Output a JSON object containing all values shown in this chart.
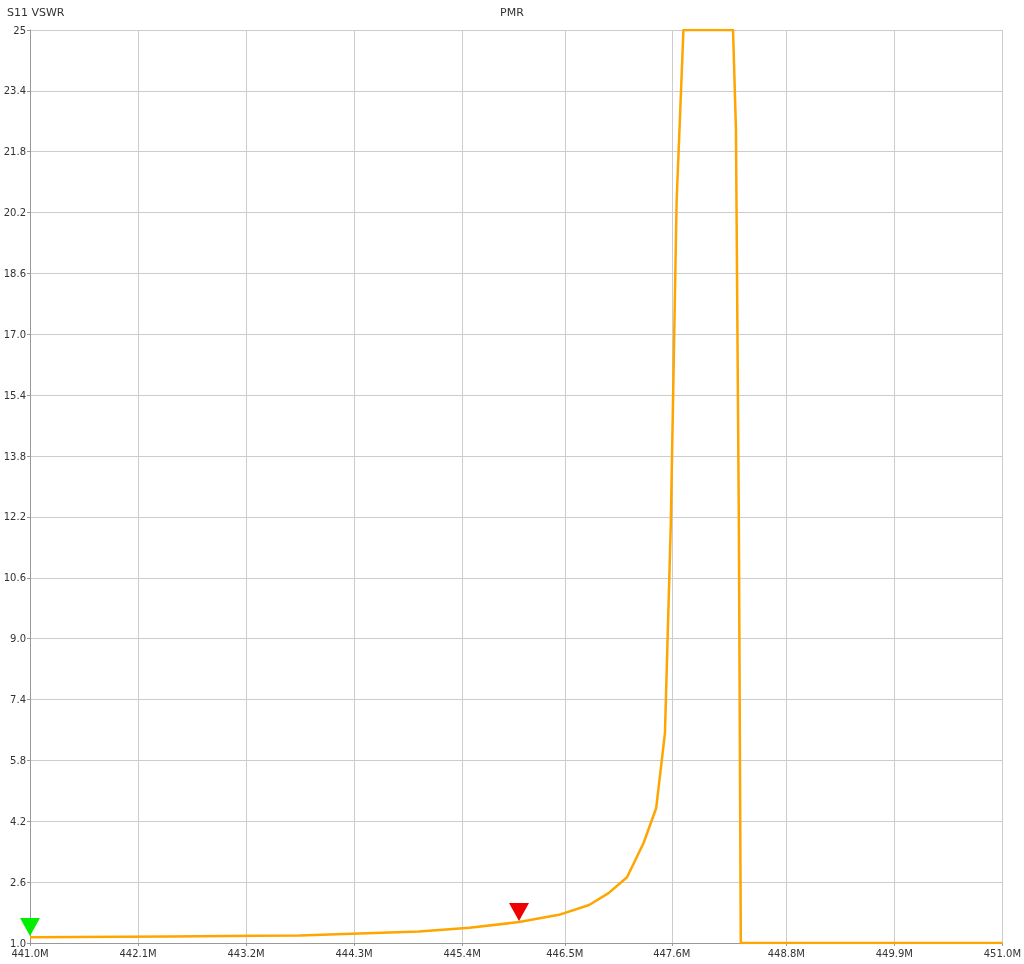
{
  "chart_data": {
    "type": "line",
    "title": "PMR",
    "ylabel": "S11 VSWR",
    "x": [
      441.0,
      442.44,
      443.77,
      444.39,
      445.0,
      445.52,
      446.03,
      446.44,
      446.75,
      446.95,
      447.14,
      447.31,
      447.44,
      447.53,
      447.59,
      447.65,
      447.72,
      448.23,
      448.26,
      448.29,
      448.31,
      451.0
    ],
    "series": [
      {
        "color": "#ffa500",
        "values": [
          1.15,
          1.17,
          1.2,
          1.25,
          1.3,
          1.4,
          1.55,
          1.74,
          2.0,
          2.31,
          2.73,
          3.63,
          4.55,
          6.52,
          12,
          20.5,
          25,
          25,
          22.4,
          12,
          1.0,
          1.0
        ]
      }
    ],
    "xlim": [
      441.0,
      451.0
    ],
    "xticks": [
      {
        "value": 441.0,
        "label": "441.0M"
      },
      {
        "value": 442.111,
        "label": "442.1M"
      },
      {
        "value": 443.222,
        "label": "443.2M"
      },
      {
        "value": 444.333,
        "label": "444.3M"
      },
      {
        "value": 445.444,
        "label": "445.4M"
      },
      {
        "value": 446.5,
        "label": "446.5M"
      },
      {
        "value": 447.6,
        "label": "447.6M"
      },
      {
        "value": 448.778,
        "label": "448.8M"
      },
      {
        "value": 449.889,
        "label": "449.9M"
      },
      {
        "value": 451.0,
        "label": "451.0M"
      }
    ],
    "ylim": [
      1.0,
      25
    ],
    "yticks": [
      {
        "value": 1.0,
        "label": "1.0"
      },
      2.6,
      4.2,
      5.8,
      7.4,
      {
        "value": 9.0,
        "label": "9.0"
      },
      10.6,
      12.2,
      13.8,
      15.4,
      {
        "value": 17.0,
        "label": "17.0"
      },
      18.6,
      20.2,
      21.8,
      23.4,
      25
    ],
    "grid": true,
    "marker": "none",
    "line_style": "solid"
  }
}
